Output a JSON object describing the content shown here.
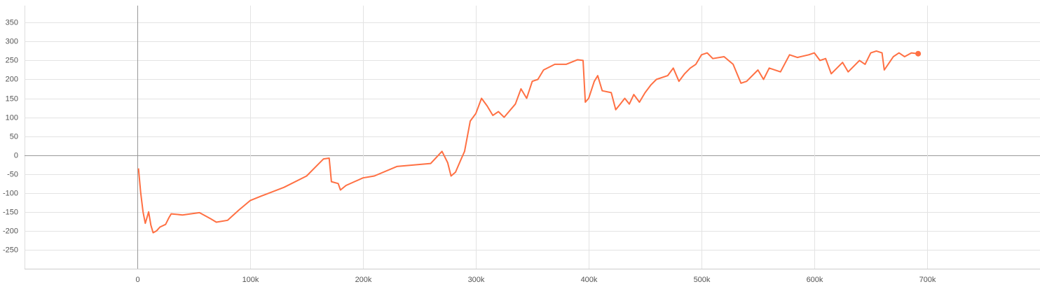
{
  "chart_data": {
    "type": "line",
    "x": [
      1000,
      3000,
      5000,
      7000,
      9000,
      10000,
      12000,
      14000,
      17000,
      20000,
      25000,
      28000,
      30000,
      40000,
      55000,
      65000,
      70000,
      80000,
      90000,
      100000,
      110000,
      130000,
      150000,
      160000,
      165000,
      170000,
      172000,
      178000,
      180000,
      185000,
      200000,
      210000,
      230000,
      260000,
      270000,
      275000,
      278000,
      282000,
      287000,
      290000,
      295000,
      300000,
      305000,
      310000,
      315000,
      320000,
      325000,
      335000,
      340000,
      345000,
      350000,
      355000,
      360000,
      370000,
      380000,
      390000,
      395000,
      397000,
      400000,
      405000,
      408000,
      412000,
      420000,
      424000,
      428000,
      432000,
      436000,
      440000,
      445000,
      450000,
      455000,
      460000,
      470000,
      475000,
      480000,
      485000,
      490000,
      495000,
      500000,
      505000,
      510000,
      520000,
      528000,
      535000,
      540000,
      550000,
      555000,
      560000,
      570000,
      578000,
      585000,
      595000,
      600000,
      605000,
      610000,
      615000,
      620000,
      625000,
      630000,
      640000,
      645000,
      650000,
      655000,
      660000,
      662000,
      670000,
      675000,
      680000,
      686000,
      692000
    ],
    "series": [
      {
        "color": "#ff7043",
        "values": [
          -35,
          -100,
          -150,
          -180,
          -160,
          -150,
          -185,
          -205,
          -200,
          -190,
          -183,
          -165,
          -155,
          -158,
          -152,
          -168,
          -177,
          -172,
          -145,
          -120,
          -108,
          -85,
          -55,
          -25,
          -10,
          -8,
          -70,
          -75,
          -92,
          -80,
          -60,
          -55,
          -30,
          -22,
          10,
          -20,
          -55,
          -45,
          -10,
          10,
          90,
          110,
          150,
          130,
          105,
          115,
          100,
          135,
          175,
          150,
          195,
          200,
          225,
          240,
          240,
          252,
          250,
          140,
          150,
          195,
          210,
          170,
          165,
          120,
          135,
          150,
          135,
          160,
          140,
          165,
          185,
          200,
          210,
          230,
          195,
          215,
          230,
          240,
          265,
          270,
          255,
          260,
          240,
          190,
          195,
          225,
          200,
          230,
          220,
          265,
          258,
          265,
          270,
          250,
          255,
          215,
          230,
          245,
          220,
          250,
          240,
          270,
          275,
          270,
          225,
          260,
          270,
          260,
          270,
          268
        ]
      }
    ],
    "xlim": [
      -100000,
      800000
    ],
    "xticks": [
      0,
      {
        "value": 100000,
        "label": "100k"
      },
      {
        "value": 200000,
        "label": "200k"
      },
      {
        "value": 300000,
        "label": "300k"
      },
      {
        "value": 400000,
        "label": "400k"
      },
      {
        "value": 500000,
        "label": "500k"
      },
      {
        "value": 600000,
        "label": "600k"
      },
      {
        "value": 700000,
        "label": "700k"
      }
    ],
    "ylim": [
      -300,
      395
    ],
    "yticks": [
      -250,
      -200,
      -150,
      -100,
      -50,
      0,
      50,
      100,
      150,
      200,
      250,
      300,
      350
    ],
    "grid": true
  }
}
